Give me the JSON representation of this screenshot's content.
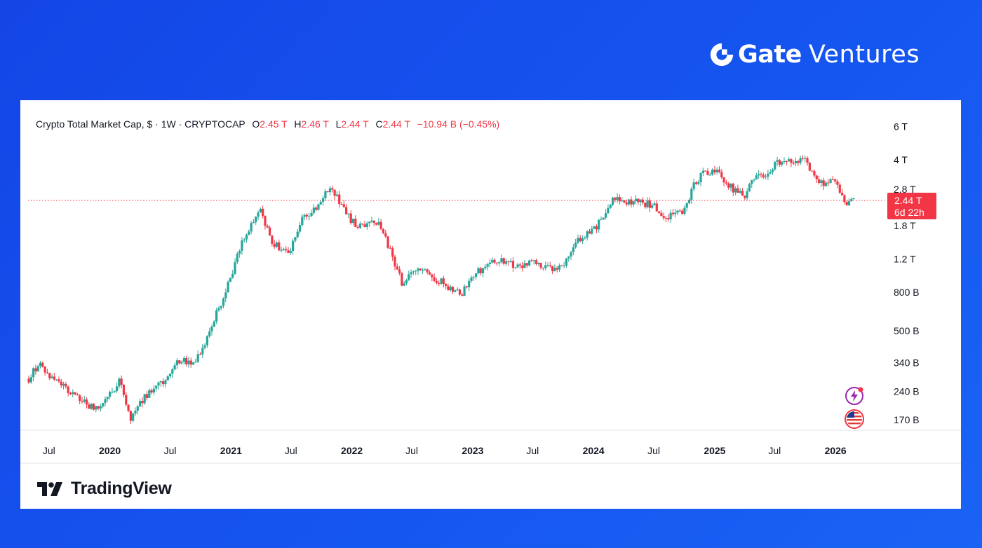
{
  "brand": {
    "name_bold": "Gate",
    "name_light": "Ventures",
    "icon": "gate-logo-icon"
  },
  "legend": {
    "symbol": "Crypto Total Market Cap, $ · 1W · CRYPTOCAP",
    "open_label": "O",
    "open": "2.45 T",
    "high_label": "H",
    "high": "2.46 T",
    "low_label": "L",
    "low": "2.44 T",
    "close_label": "C",
    "close": "2.44 T",
    "change": "−10.94 B (−0.45%)"
  },
  "price_tag": {
    "value": "2.44 T",
    "countdown": "6d 22h"
  },
  "footer": {
    "logo_text": "TradingView",
    "icon": "tradingview-logo-icon"
  },
  "side_icons": [
    "lightning-icon",
    "us-flag-icon"
  ],
  "colors": {
    "up": "#26a69a",
    "down": "#f23645",
    "background": "#1656f0"
  },
  "chart_data": {
    "type": "candlestick",
    "interval": "1W",
    "y_scale": "log",
    "ylim": [
      160000000000,
      6500000000000
    ],
    "y_ticks": [
      {
        "label": "6 T",
        "value": 6000000000000
      },
      {
        "label": "4 T",
        "value": 4000000000000
      },
      {
        "label": "2.8 T",
        "value": 2800000000000
      },
      {
        "label": "1.8 T",
        "value": 1800000000000
      },
      {
        "label": "1.2 T",
        "value": 1200000000000
      },
      {
        "label": "800 B",
        "value": 800000000000
      },
      {
        "label": "500 B",
        "value": 500000000000
      },
      {
        "label": "340 B",
        "value": 340000000000
      },
      {
        "label": "240 B",
        "value": 240000000000
      },
      {
        "label": "170 B",
        "value": 170000000000
      }
    ],
    "x_ticks": [
      {
        "label": "Jul",
        "date": "2019-07",
        "bold": false
      },
      {
        "label": "2020",
        "date": "2020-01",
        "bold": true
      },
      {
        "label": "Jul",
        "date": "2020-07",
        "bold": false
      },
      {
        "label": "2021",
        "date": "2021-01",
        "bold": true
      },
      {
        "label": "Jul",
        "date": "2021-07",
        "bold": false
      },
      {
        "label": "2022",
        "date": "2022-01",
        "bold": true
      },
      {
        "label": "Jul",
        "date": "2022-07",
        "bold": false
      },
      {
        "label": "2023",
        "date": "2023-01",
        "bold": true
      },
      {
        "label": "Jul",
        "date": "2023-07",
        "bold": false
      },
      {
        "label": "2024",
        "date": "2024-01",
        "bold": true
      },
      {
        "label": "Jul",
        "date": "2024-07",
        "bold": false
      },
      {
        "label": "2025",
        "date": "2025-01",
        "bold": true
      },
      {
        "label": "Jul",
        "date": "2025-07",
        "bold": false
      },
      {
        "label": "2026",
        "date": "2026-01",
        "bold": true
      }
    ],
    "last_price": 2440000000000,
    "trend": [
      [
        "2019-05",
        0.28
      ],
      [
        "2019-06",
        0.34
      ],
      [
        "2019-07",
        0.29
      ],
      [
        "2019-08",
        0.27
      ],
      [
        "2019-09",
        0.24
      ],
      [
        "2019-10",
        0.22
      ],
      [
        "2019-11",
        0.2
      ],
      [
        "2019-12",
        0.195
      ],
      [
        "2020-01",
        0.23
      ],
      [
        "2020-02",
        0.28
      ],
      [
        "2020-03",
        0.17
      ],
      [
        "2020-04",
        0.21
      ],
      [
        "2020-05",
        0.24
      ],
      [
        "2020-06",
        0.26
      ],
      [
        "2020-07",
        0.29
      ],
      [
        "2020-08",
        0.36
      ],
      [
        "2020-09",
        0.34
      ],
      [
        "2020-10",
        0.37
      ],
      [
        "2020-11",
        0.52
      ],
      [
        "2020-12",
        0.7
      ],
      [
        "2021-01",
        0.95
      ],
      [
        "2021-02",
        1.45
      ],
      [
        "2021-03",
        1.75
      ],
      [
        "2021-04",
        2.2
      ],
      [
        "2021-05",
        1.5
      ],
      [
        "2021-06",
        1.35
      ],
      [
        "2021-07",
        1.35
      ],
      [
        "2021-08",
        1.9
      ],
      [
        "2021-09",
        2.1
      ],
      [
        "2021-10",
        2.5
      ],
      [
        "2021-11",
        2.85
      ],
      [
        "2021-12",
        2.3
      ],
      [
        "2022-01",
        1.9
      ],
      [
        "2022-02",
        1.75
      ],
      [
        "2022-03",
        2.0
      ],
      [
        "2022-04",
        1.75
      ],
      [
        "2022-05",
        1.25
      ],
      [
        "2022-06",
        0.9
      ],
      [
        "2022-07",
        1.0
      ],
      [
        "2022-08",
        1.05
      ],
      [
        "2022-09",
        0.93
      ],
      [
        "2022-10",
        0.92
      ],
      [
        "2022-11",
        0.8
      ],
      [
        "2022-12",
        0.79
      ],
      [
        "2023-01",
        1.0
      ],
      [
        "2023-02",
        1.05
      ],
      [
        "2023-03",
        1.15
      ],
      [
        "2023-04",
        1.18
      ],
      [
        "2023-05",
        1.12
      ],
      [
        "2023-06",
        1.1
      ],
      [
        "2023-07",
        1.15
      ],
      [
        "2023-08",
        1.08
      ],
      [
        "2023-09",
        1.05
      ],
      [
        "2023-10",
        1.1
      ],
      [
        "2023-11",
        1.4
      ],
      [
        "2023-12",
        1.6
      ],
      [
        "2024-01",
        1.7
      ],
      [
        "2024-02",
        2.0
      ],
      [
        "2024-03",
        2.5
      ],
      [
        "2024-04",
        2.35
      ],
      [
        "2024-05",
        2.4
      ],
      [
        "2024-06",
        2.35
      ],
      [
        "2024-07",
        2.3
      ],
      [
        "2024-08",
        2.0
      ],
      [
        "2024-09",
        2.05
      ],
      [
        "2024-10",
        2.2
      ],
      [
        "2024-11",
        3.0
      ],
      [
        "2024-12",
        3.45
      ],
      [
        "2025-01",
        3.5
      ],
      [
        "2025-02",
        3.1
      ],
      [
        "2025-03",
        2.75
      ],
      [
        "2025-04",
        2.6
      ],
      [
        "2025-05",
        3.2
      ],
      [
        "2025-06",
        3.3
      ],
      [
        "2025-07",
        3.8
      ],
      [
        "2025-08",
        3.95
      ],
      [
        "2025-09",
        3.9
      ],
      [
        "2025-10",
        4.0
      ],
      [
        "2025-11",
        3.2
      ],
      [
        "2025-12",
        3.0
      ],
      [
        "2026-01",
        3.05
      ],
      [
        "2026-02",
        2.3
      ],
      [
        "2026-03",
        2.44
      ]
    ]
  }
}
